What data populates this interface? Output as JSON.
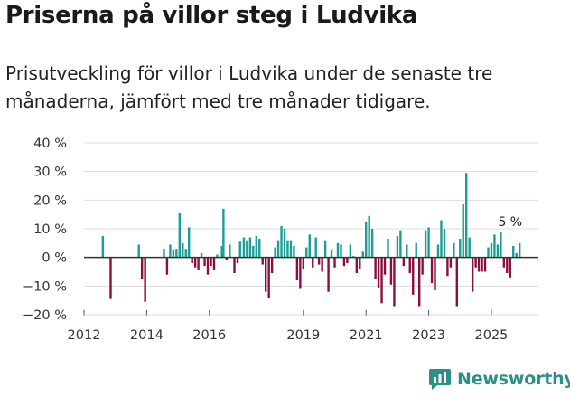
{
  "title": "Priserna på villor steg i Ludvika",
  "subtitle": "Prisutveckling för villor i Ludvika under de senaste tre månaderna, jämfört med tre månader tidigare.",
  "brand": {
    "name": "Newsworthy",
    "color": "#2b8f8a"
  },
  "colors": {
    "positive": "#1a9e96",
    "negative": "#8b0f3e",
    "grid": "#dddddd",
    "axis": "#333333"
  },
  "chart_data": {
    "type": "bar",
    "title": "Priserna på villor steg i Ludvika",
    "xlabel": "",
    "ylabel": "",
    "ylim": [
      -20,
      40
    ],
    "yticks": [
      -20,
      -10,
      0,
      10,
      20,
      30,
      40
    ],
    "ytick_labels": [
      "−20 %",
      "−10 %",
      "0 %",
      "10 %",
      "20 %",
      "30 %",
      "40 %"
    ],
    "xticks": [
      2012,
      2014,
      2016,
      2019,
      2021,
      2023,
      2025
    ],
    "xtick_labels": [
      "2012",
      "2014",
      "2016",
      "2019",
      "2021",
      "2023",
      "2025"
    ],
    "xlim": [
      2012,
      2026.5
    ],
    "annotation": {
      "text": "5 %",
      "x": 2025.6,
      "y": 5
    },
    "x": [
      2012.6,
      2012.85,
      2013.75,
      2013.85,
      2013.95,
      2014.55,
      2014.65,
      2014.75,
      2014.85,
      2014.95,
      2015.05,
      2015.15,
      2015.25,
      2015.35,
      2015.45,
      2015.55,
      2015.65,
      2015.75,
      2015.85,
      2015.95,
      2016.05,
      2016.15,
      2016.25,
      2016.4,
      2016.45,
      2016.55,
      2016.65,
      2016.8,
      2016.9,
      2016.98,
      2017.1,
      2017.2,
      2017.3,
      2017.4,
      2017.5,
      2017.6,
      2017.7,
      2017.8,
      2017.9,
      2018.0,
      2018.1,
      2018.2,
      2018.3,
      2018.4,
      2018.5,
      2018.6,
      2018.7,
      2018.8,
      2018.9,
      2019.0,
      2019.1,
      2019.2,
      2019.3,
      2019.4,
      2019.5,
      2019.6,
      2019.7,
      2019.8,
      2019.9,
      2020.0,
      2020.1,
      2020.2,
      2020.3,
      2020.4,
      2020.5,
      2020.6,
      2020.7,
      2020.8,
      2020.9,
      2021.0,
      2021.1,
      2021.2,
      2021.3,
      2021.4,
      2021.5,
      2021.6,
      2021.7,
      2021.8,
      2021.9,
      2022.0,
      2022.1,
      2022.2,
      2022.3,
      2022.4,
      2022.5,
      2022.6,
      2022.7,
      2022.8,
      2022.9,
      2023.0,
      2023.1,
      2023.2,
      2023.3,
      2023.4,
      2023.5,
      2023.6,
      2023.7,
      2023.8,
      2023.9,
      2024.0,
      2024.1,
      2024.2,
      2024.3,
      2024.4,
      2024.5,
      2024.6,
      2024.7,
      2024.8,
      2024.9,
      2025.0,
      2025.1,
      2025.2,
      2025.3,
      2025.4,
      2025.5,
      2025.6,
      2025.7,
      2025.8,
      2025.9
    ],
    "values": [
      7.5,
      -14.5,
      4.5,
      -7.5,
      -15.5,
      3.0,
      -6.0,
      4.5,
      2.5,
      3.0,
      15.5,
      5.0,
      3.0,
      10.5,
      -2.0,
      -3.5,
      -4.5,
      1.5,
      -3.0,
      -6.0,
      -3.0,
      -4.5,
      1.0,
      4.0,
      17.0,
      -1.0,
      4.5,
      -5.5,
      -2.0,
      5.5,
      7.0,
      6.0,
      7.0,
      4.0,
      7.5,
      6.5,
      -2.5,
      -12.0,
      -14.0,
      -5.5,
      3.5,
      6.0,
      11.0,
      10.0,
      6.0,
      6.0,
      4.0,
      -8.0,
      -11.0,
      -4.0,
      3.5,
      8.0,
      -3.5,
      7.0,
      -2.5,
      -5.0,
      6.0,
      -12.0,
      2.5,
      -3.5,
      5.0,
      4.5,
      -3.0,
      -2.0,
      4.5,
      0.5,
      -5.5,
      -4.0,
      2.0,
      12.5,
      14.5,
      10.0,
      -7.5,
      -10.5,
      -16.0,
      -6.0,
      6.5,
      -9.5,
      -17.0,
      7.5,
      9.5,
      -3.0,
      4.5,
      -5.5,
      -13.0,
      5.0,
      -17.0,
      -6.0,
      9.5,
      10.5,
      -9.0,
      -11.5,
      4.5,
      13.0,
      10.0,
      -6.5,
      -3.5,
      5.0,
      -17.0,
      6.5,
      18.5,
      29.5,
      7.0,
      -12.0,
      -3.5,
      -5.0,
      -5.0,
      -5.0,
      3.5,
      5.0,
      8.0,
      4.5,
      9.0,
      -3.5,
      -5.5,
      -7.0,
      4.0,
      1.5,
      5.0
    ]
  }
}
